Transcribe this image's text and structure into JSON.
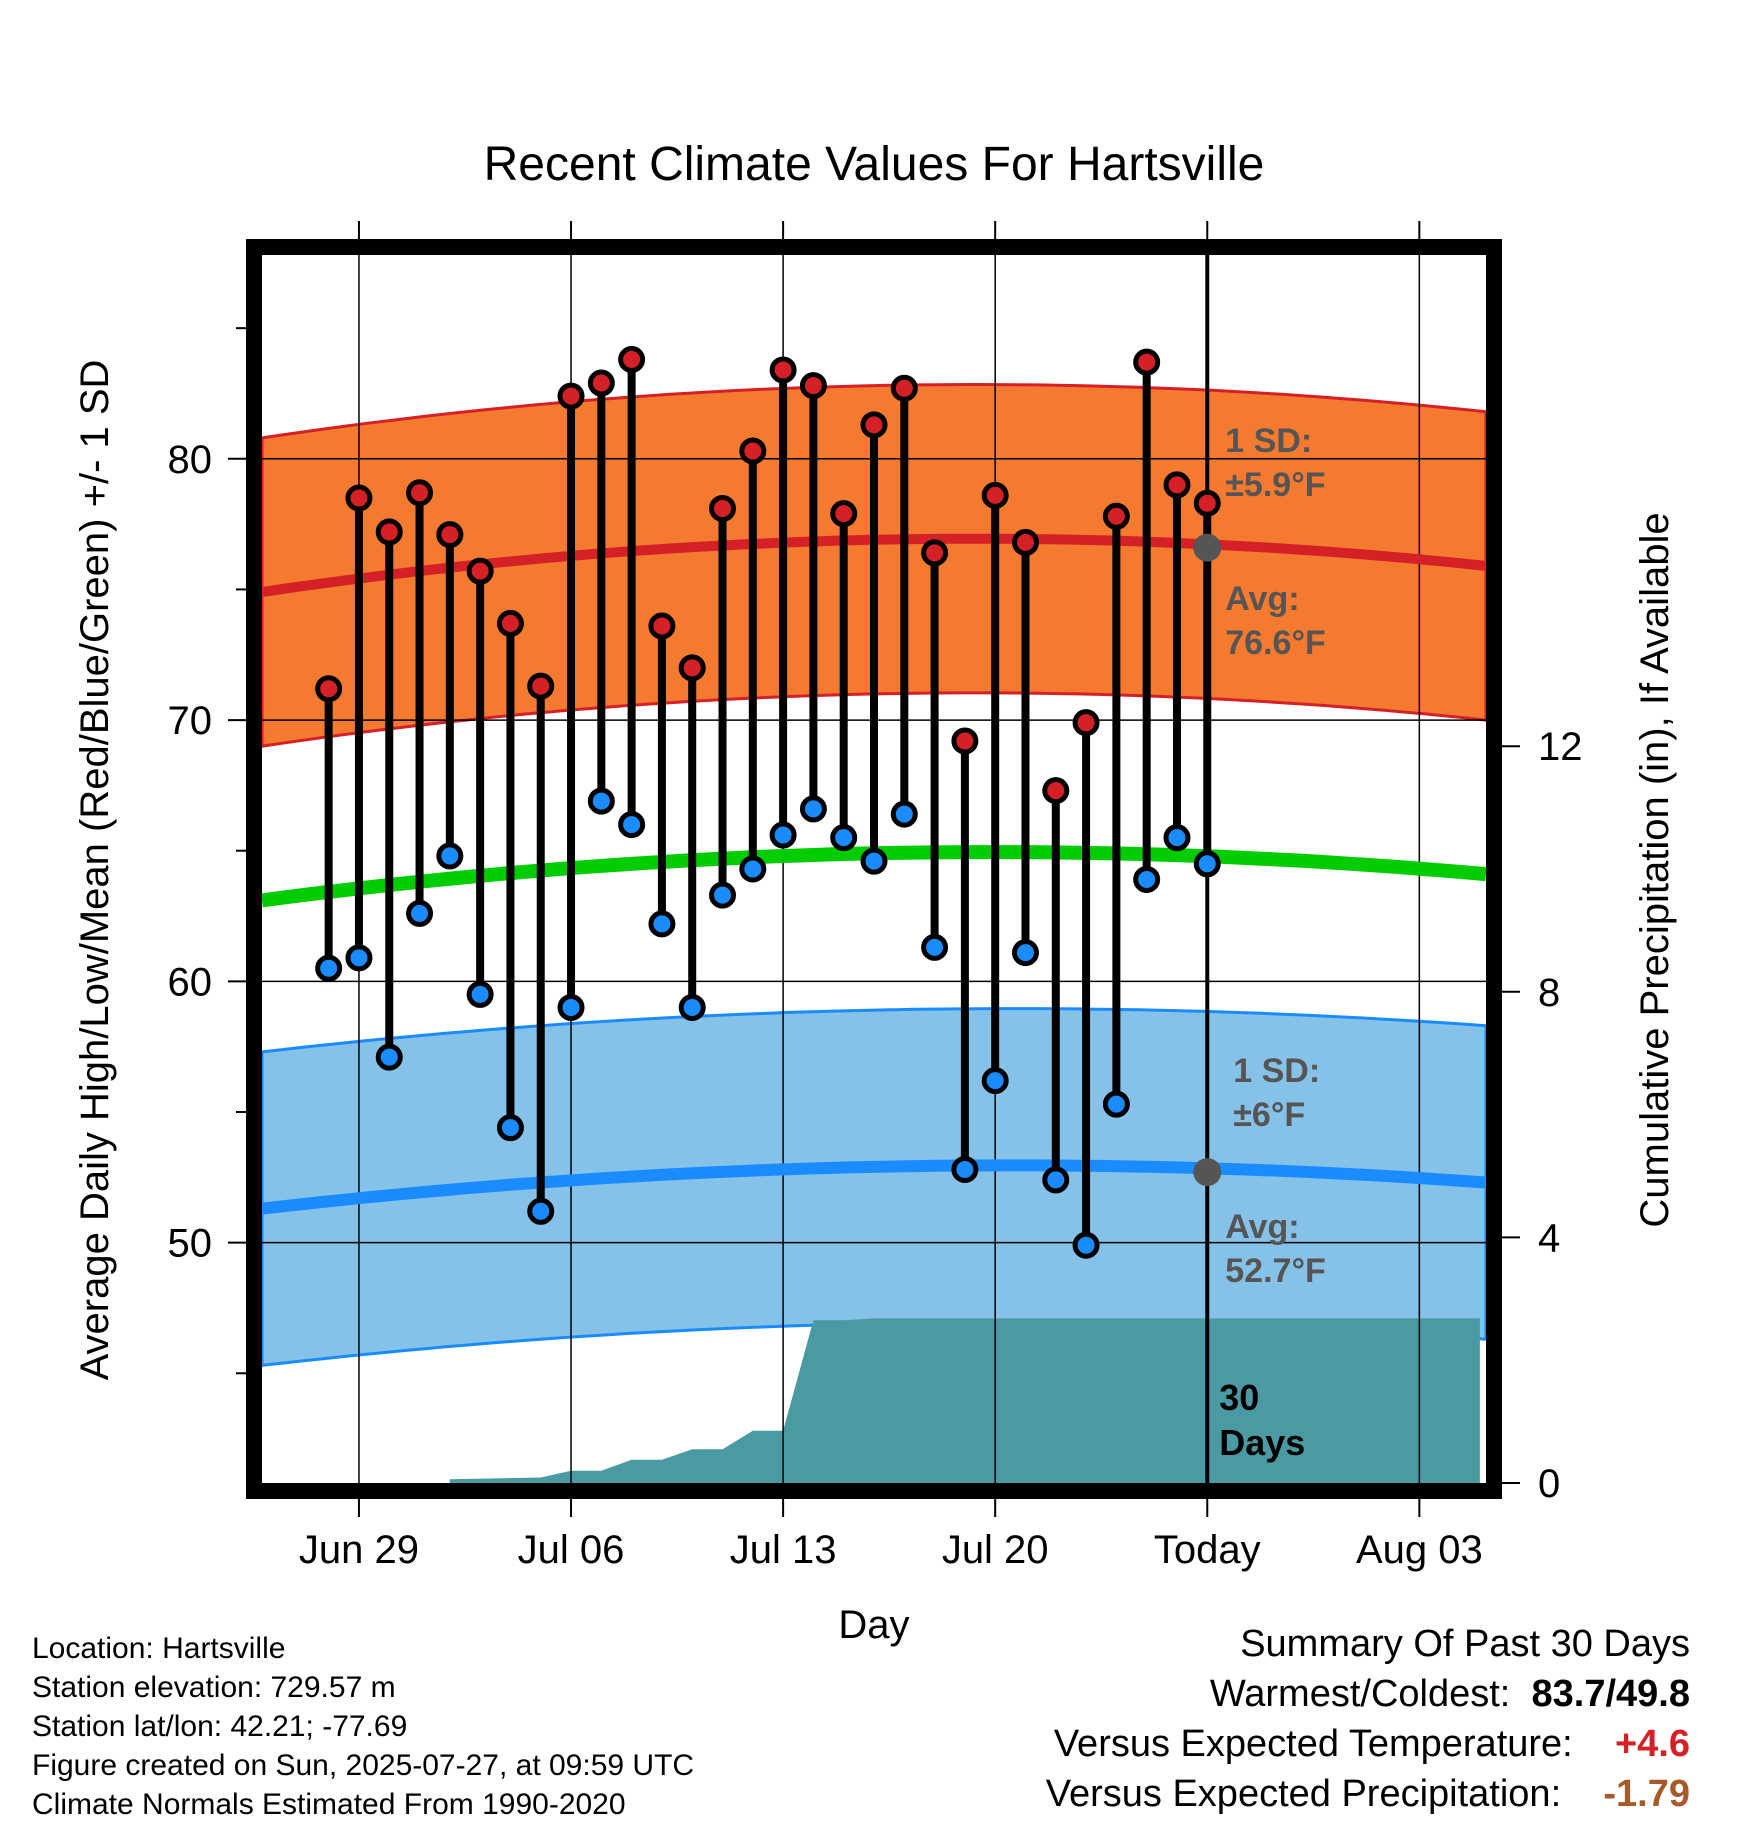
{
  "chart_data": {
    "type": "line",
    "title": "Recent Climate Values For Hartsville",
    "xlabel": "Day",
    "ylabel": "Average Daily High/Low/Mean (Red/Blue/Green) +/- 1 SD",
    "y2label": "Cumulative Precipitation (in), If Available",
    "ylim": [
      40.8,
      87.8
    ],
    "y2lim": [
      0,
      20
    ],
    "y_ticks": [
      50,
      60,
      70,
      80
    ],
    "y2_ticks": [
      0,
      4,
      8,
      12
    ],
    "x_tick_labels": [
      "Jun 29",
      "Jul 06",
      "Jul 13",
      "Jul 20",
      "Today",
      "Aug 03"
    ],
    "x_ticks_day": [
      2,
      9,
      16,
      23,
      30,
      37
    ],
    "xlim": [
      -1.2,
      39.2
    ],
    "grid": true,
    "days": [
      1,
      2,
      3,
      4,
      5,
      6,
      7,
      8,
      9,
      10,
      11,
      12,
      13,
      14,
      15,
      16,
      17,
      18,
      19,
      20,
      21,
      22,
      23,
      24,
      25,
      26,
      27,
      28,
      29
    ],
    "highs": [
      71.2,
      78.5,
      77.2,
      78.7,
      77.1,
      75.7,
      73.7,
      71.3,
      82.4,
      82.9,
      83.8,
      73.6,
      72.0,
      78.1,
      80.3,
      83.4,
      82.8,
      77.9,
      81.3,
      82.7,
      76.4,
      69.2,
      78.6,
      76.8,
      67.3,
      69.9,
      77.8,
      83.7,
      79.0
    ],
    "lows": [
      60.5,
      60.9,
      57.1,
      62.6,
      64.8,
      59.5,
      54.4,
      51.2,
      59.0,
      66.9,
      66.0,
      62.2,
      59.0,
      63.3,
      64.3,
      65.6,
      66.6,
      65.5,
      64.6,
      66.4,
      61.3,
      52.8,
      56.2,
      61.1,
      52.4,
      49.9,
      55.3,
      63.9,
      65.5
    ],
    "lows_extra": [
      64.5
    ],
    "highs_extra": [
      78.3
    ],
    "normal_high": {
      "start": 74.9,
      "mid": 76.9,
      "end": 75.9,
      "sd": 5.9
    },
    "normal_low": {
      "start": 51.3,
      "mid": 52.9,
      "end": 52.3,
      "sd": 6
    },
    "normal_mean": {
      "start": 63.1,
      "mid": 64.9,
      "end": 64.1
    },
    "precip_cumulative": {
      "x": [
        5,
        8,
        9,
        10,
        11,
        12,
        13,
        14,
        15,
        16,
        17,
        18,
        19,
        20,
        39
      ],
      "y": [
        0.06,
        0.09,
        0.2,
        0.2,
        0.38,
        0.38,
        0.55,
        0.55,
        0.85,
        0.85,
        2.65,
        2.65,
        2.68,
        2.68,
        2.68
      ]
    },
    "annotations": {
      "high_sd_label": "1 SD:",
      "high_sd_value": "±5.9°F",
      "high_avg_label": "Avg:",
      "high_avg_value": "76.6°F",
      "low_sd_label": "1 SD:",
      "low_sd_value": "±6°F",
      "low_avg_label": "Avg:",
      "low_avg_value": "52.7°F",
      "days_label_1": "30",
      "days_label_2": "Days",
      "high_avg_today": 76.6,
      "low_avg_today": 52.7
    }
  },
  "footer": {
    "location": "Location: Hartsville",
    "elevation": "Station elevation: 729.57 m",
    "latlon": "Station lat/lon: 42.21; -77.69",
    "created": "Figure created on Sun, 2025-07-27, at 09:59 UTC",
    "normals": "Climate Normals Estimated From 1990-2020"
  },
  "summary": {
    "title": "Summary Of Past 30 Days",
    "warm_cold_label": "Warmest/Coldest:",
    "warmest": "83.7",
    "separator": "/",
    "coldest": "49.8",
    "temp_label": "Versus Expected Temperature:",
    "temp_value": "+4.6",
    "precip_label": "Versus Expected Precipitation:",
    "precip_value": "-1.79"
  },
  "colors": {
    "high_band": "#f47a30",
    "high_line": "#d62027",
    "low_band": "#86c1e8",
    "low_line": "#1a8cff",
    "mean_line": "#00cc00",
    "precip": "#4a9aa3",
    "high_dot": "#d62027",
    "low_dot": "#1a8cff",
    "temp_anom": "#d62027",
    "precip_anom": "#a65a2a",
    "annot": "#555555"
  }
}
